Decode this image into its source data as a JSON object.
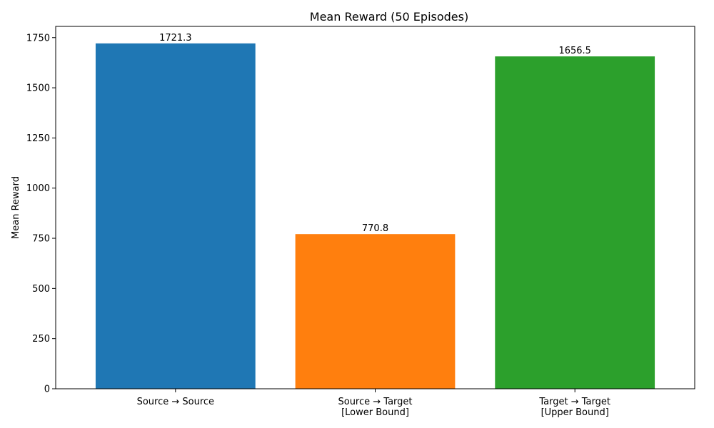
{
  "chart_data": {
    "type": "bar",
    "title": "Mean Reward (50 Episodes)",
    "xlabel": "",
    "ylabel": "Mean Reward",
    "ylim": [
      0,
      1806
    ],
    "yticks": [
      0,
      250,
      500,
      750,
      1000,
      1250,
      1500,
      1750
    ],
    "categories": [
      [
        "Source → Source"
      ],
      [
        "Source → Target",
        "[Lower Bound]"
      ],
      [
        "Target → Target",
        "[Upper Bound]"
      ]
    ],
    "values": [
      1721.3,
      770.8,
      1656.5
    ],
    "value_labels": [
      "1721.3",
      "770.8",
      "1656.5"
    ],
    "colors": [
      "#1f77b4",
      "#ff7f0e",
      "#2ca02c"
    ],
    "grid": false,
    "legend": "none"
  }
}
